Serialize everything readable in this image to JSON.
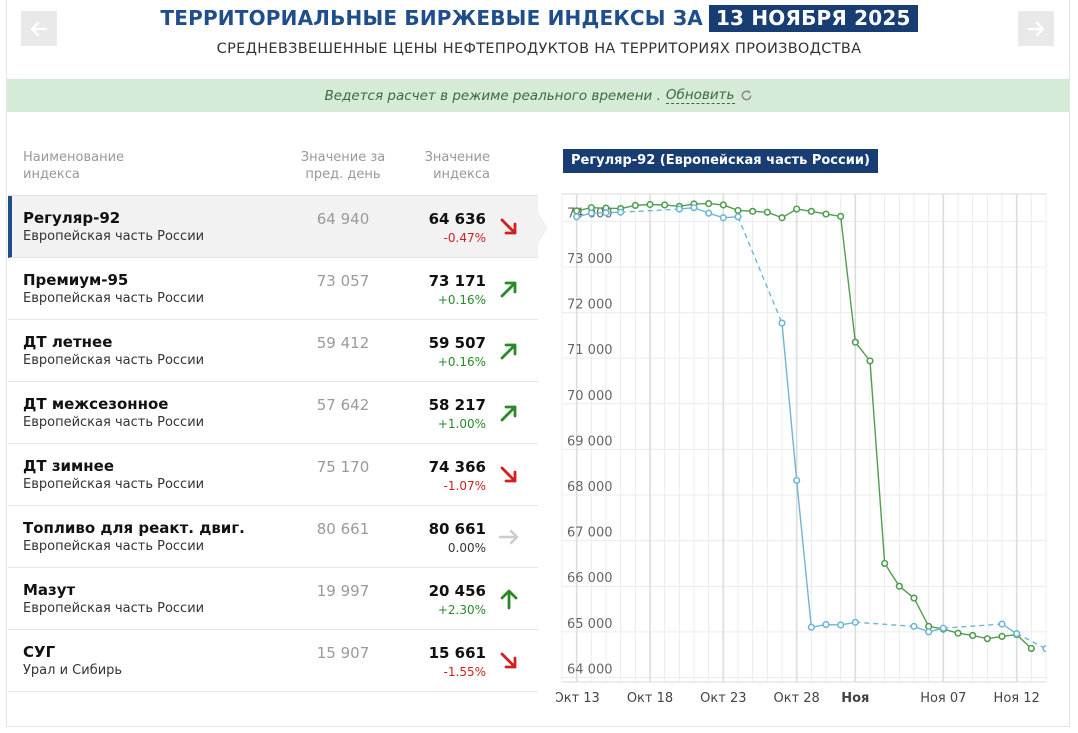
{
  "header": {
    "title": "ТЕРРИТОРИАЛЬНЫЕ БИРЖЕВЫЕ ИНДЕКСЫ ЗА",
    "date": "13 НОЯБРЯ 2025",
    "subtitle": "СРЕДНЕВЗВЕШЕННЫЕ ЦЕНЫ НЕФТЕПРОДУКТОВ НА ТЕРРИТОРИЯХ ПРОИЗВОДСТВА",
    "prev_icon": "arrow-left-icon",
    "next_icon": "arrow-right-icon"
  },
  "status": {
    "text": "Ведется расчет в режиме реального времени .",
    "refresh_label": "Обновить",
    "refresh_icon": "refresh-icon"
  },
  "table": {
    "col_name": "Наименование индекса",
    "col_prev": "Значение за пред. день",
    "col_curr": "Значение индекса",
    "rows": [
      {
        "name": "Регуляр-92",
        "region": "Европейская часть России",
        "prev": "64 940",
        "curr": "64 636",
        "change": "-0.47%",
        "trend": "down"
      },
      {
        "name": "Премиум-95",
        "region": "Европейская часть России",
        "prev": "73 057",
        "curr": "73 171",
        "change": "+0.16%",
        "trend": "up"
      },
      {
        "name": "ДТ летнее",
        "region": "Европейская часть России",
        "prev": "59 412",
        "curr": "59 507",
        "change": "+0.16%",
        "trend": "up"
      },
      {
        "name": "ДТ межсезонное",
        "region": "Европейская часть России",
        "prev": "57 642",
        "curr": "58 217",
        "change": "+1.00%",
        "trend": "up"
      },
      {
        "name": "ДТ зимнее",
        "region": "Европейская часть России",
        "prev": "75 170",
        "curr": "74 366",
        "change": "-1.07%",
        "trend": "down"
      },
      {
        "name": "Топливо для реакт. двиг.",
        "region": "Европейская часть России",
        "prev": "80 661",
        "curr": "80 661",
        "change": "0.00%",
        "trend": "flat"
      },
      {
        "name": "Мазут",
        "region": "Европейская часть России",
        "prev": "19 997",
        "curr": "20 456",
        "change": "+2.30%",
        "trend": "strong-up"
      },
      {
        "name": "СУГ",
        "region": "Урал и Сибирь",
        "prev": "15 907",
        "curr": "15 661",
        "change": "-1.55%",
        "trend": "down"
      }
    ]
  },
  "colors": {
    "accent": "#173d73",
    "title": "#1f4e8c",
    "up": "#2a8a2a",
    "down": "#d02020",
    "flat": "#cccccc",
    "series_green": "#4f9e4f",
    "series_blue": "#6fb6d6"
  },
  "chart_data": {
    "type": "line",
    "title": "Регуляр-92 (Европейская часть России)",
    "xlabel": "",
    "ylabel": "",
    "ylim": [
      63900,
      74600
    ],
    "xlim": [
      "2025-10-12",
      "2025-11-14"
    ],
    "y_ticks": [
      {
        "value": 64000,
        "label": "64 000"
      },
      {
        "value": 65000,
        "label": "65 000"
      },
      {
        "value": 66000,
        "label": "66 000"
      },
      {
        "value": 67000,
        "label": "67 000"
      },
      {
        "value": 68000,
        "label": "68 000"
      },
      {
        "value": 69000,
        "label": "69 000"
      },
      {
        "value": 70000,
        "label": "70 000"
      },
      {
        "value": 71000,
        "label": "71 000"
      },
      {
        "value": 72000,
        "label": "72 000"
      },
      {
        "value": 73000,
        "label": "73 000"
      },
      {
        "value": 74000,
        "label": "74 000"
      }
    ],
    "x_ticks": [
      {
        "date": "2025-10-13",
        "label": "Окт 13",
        "bold": false
      },
      {
        "date": "2025-10-18",
        "label": "Окт 18",
        "bold": false
      },
      {
        "date": "2025-10-23",
        "label": "Окт 23",
        "bold": false
      },
      {
        "date": "2025-10-28",
        "label": "Окт 28",
        "bold": false
      },
      {
        "date": "2025-11-01",
        "label": "Ноя",
        "bold": true
      },
      {
        "date": "2025-11-07",
        "label": "Ноя 07",
        "bold": false
      },
      {
        "date": "2025-11-12",
        "label": "Ноя 12",
        "bold": false
      }
    ],
    "grid": true,
    "legend": "none",
    "series": [
      {
        "color": "#4f9e4f",
        "dashed_gaps": false,
        "points": [
          [
            "2025-10-13",
            74230
          ],
          [
            "2025-10-14",
            74300
          ],
          [
            "2025-10-15",
            74290
          ],
          [
            "2025-10-16",
            74280
          ],
          [
            "2025-10-17",
            74350
          ],
          [
            "2025-10-18",
            74370
          ],
          [
            "2025-10-19",
            74360
          ],
          [
            "2025-10-20",
            74330
          ],
          [
            "2025-10-21",
            74380
          ],
          [
            "2025-10-22",
            74390
          ],
          [
            "2025-10-23",
            74360
          ],
          [
            "2025-10-24",
            74240
          ],
          [
            "2025-10-25",
            74220
          ],
          [
            "2025-10-26",
            74200
          ],
          [
            "2025-10-27",
            74080
          ],
          [
            "2025-10-28",
            74270
          ],
          [
            "2025-10-29",
            74220
          ],
          [
            "2025-10-30",
            74160
          ],
          [
            "2025-10-31",
            74110
          ],
          [
            "2025-11-01",
            71350
          ],
          [
            "2025-11-02",
            70940
          ],
          [
            "2025-11-03",
            66500
          ],
          [
            "2025-11-04",
            66000
          ],
          [
            "2025-11-05",
            65740
          ],
          [
            "2025-11-06",
            65120
          ],
          [
            "2025-11-07",
            65060
          ],
          [
            "2025-11-08",
            64970
          ],
          [
            "2025-11-09",
            64920
          ],
          [
            "2025-11-10",
            64850
          ],
          [
            "2025-11-11",
            64900
          ],
          [
            "2025-11-12",
            64940
          ],
          [
            "2025-11-13",
            64636
          ]
        ]
      },
      {
        "color": "#6fb6d6",
        "dashed_gaps": true,
        "points": [
          [
            "2025-10-13",
            74100
          ],
          [
            "2025-10-14",
            74180
          ],
          [
            "2025-10-15",
            74190
          ],
          [
            "2025-10-16",
            74200
          ],
          [
            "2025-10-20",
            74270
          ],
          [
            "2025-10-21",
            74300
          ],
          [
            "2025-10-22",
            74180
          ],
          [
            "2025-10-23",
            74080
          ],
          [
            "2025-10-24",
            74100
          ],
          [
            "2025-10-27",
            71770
          ],
          [
            "2025-10-28",
            68320
          ],
          [
            "2025-10-29",
            65100
          ],
          [
            "2025-10-30",
            65160
          ],
          [
            "2025-10-31",
            65150
          ],
          [
            "2025-11-01",
            65210
          ],
          [
            "2025-11-05",
            65120
          ],
          [
            "2025-11-06",
            65000
          ],
          [
            "2025-11-07",
            65080
          ],
          [
            "2025-11-11",
            65170
          ],
          [
            "2025-11-12",
            64960
          ],
          [
            "2025-11-14",
            64630
          ]
        ]
      }
    ]
  }
}
